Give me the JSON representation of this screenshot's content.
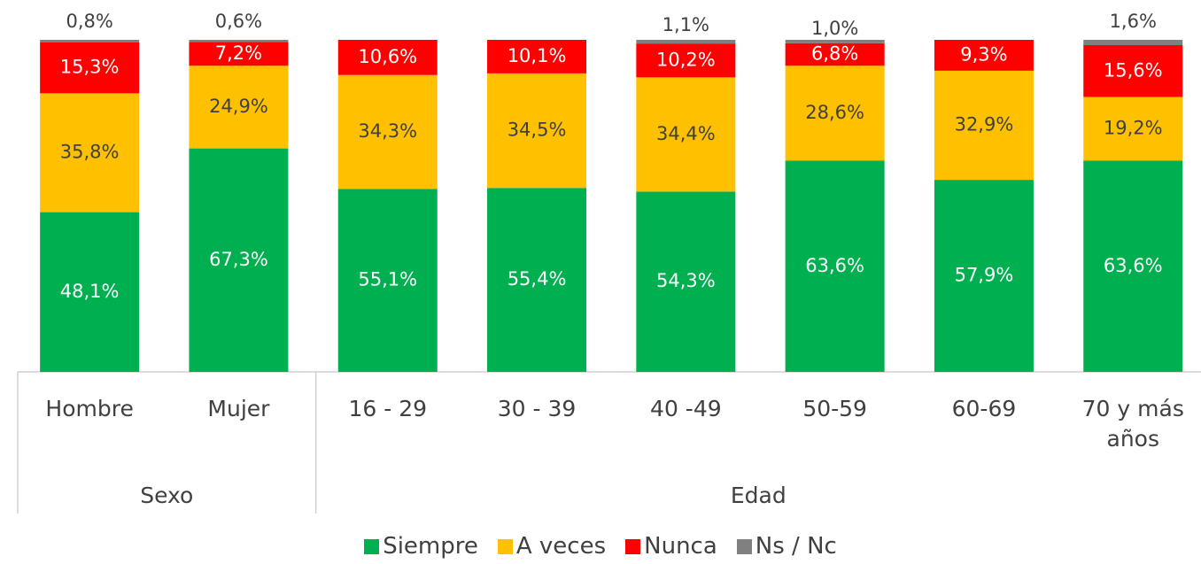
{
  "chart_data": {
    "type": "stacked_bar",
    "categories": [
      "Hombre",
      "Mujer",
      "16 - 29",
      "30 - 39",
      "40 -49",
      "50-59",
      "60-69",
      "70 y más años"
    ],
    "groups": [
      {
        "name": "Sexo",
        "count": 2
      },
      {
        "name": "Edad",
        "count": 6
      }
    ],
    "series": [
      {
        "name": "Siempre",
        "color": "#00b050",
        "values": [
          48.1,
          67.3,
          55.1,
          55.4,
          54.3,
          63.6,
          57.9,
          63.6
        ],
        "value_labels": [
          "48,1%",
          "67,3%",
          "55,1%",
          "55,4%",
          "54,3%",
          "63,6%",
          "57,9%",
          "63,6%"
        ]
      },
      {
        "name": "A veces",
        "color": "#ffc000",
        "values": [
          35.8,
          24.9,
          34.3,
          34.5,
          34.4,
          28.6,
          32.9,
          19.2
        ],
        "value_labels": [
          "35,8%",
          "24,9%",
          "34,3%",
          "34,5%",
          "34,4%",
          "28,6%",
          "32,9%",
          "19,2%"
        ]
      },
      {
        "name": "Nunca",
        "color": "#ff0000",
        "values": [
          15.3,
          7.2,
          10.6,
          10.1,
          10.2,
          6.8,
          9.3,
          15.6
        ],
        "value_labels": [
          "15,3%",
          "7,2%",
          "10,6%",
          "10,1%",
          "10,2%",
          "6,8%",
          "9,3%",
          "15,6%"
        ]
      },
      {
        "name": "Ns / Nc",
        "color": "#808080",
        "values": [
          0.8,
          0.6,
          null,
          null,
          1.1,
          1.0,
          null,
          1.6
        ],
        "value_labels": [
          "0,8%",
          "0,6%",
          null,
          null,
          "1,1%",
          "1,0%",
          null,
          "1,6%"
        ]
      }
    ],
    "legend": "bottom"
  }
}
